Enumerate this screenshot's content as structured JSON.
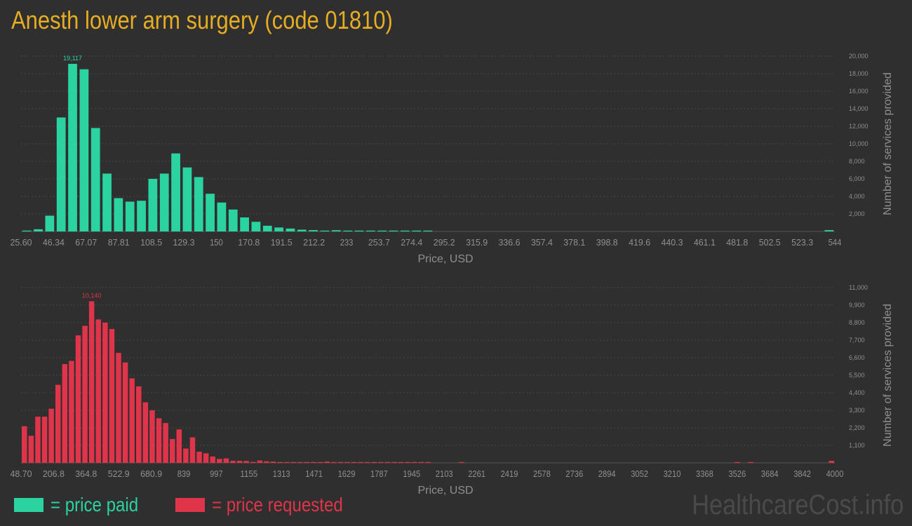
{
  "title": "Anesth lower arm surgery (code 01810)",
  "colors": {
    "paid": "#2ad3a0",
    "requested": "#e0344a",
    "title": "#e6ad24",
    "axis_text": "#8f8f8f"
  },
  "legend": {
    "paid_label": "= price paid",
    "requested_label": "= price requested"
  },
  "watermark": "HealthcareCost.info",
  "chart_data": [
    {
      "type": "bar",
      "series": [
        {
          "name": "price paid",
          "values": [
            100,
            250,
            1800,
            13000,
            19117,
            18500,
            11800,
            6600,
            3800,
            3400,
            3500,
            6000,
            6600,
            8900,
            7300,
            6200,
            4300,
            3300,
            2500,
            1600,
            1100,
            650,
            450,
            330,
            200,
            150,
            80,
            140,
            40,
            50,
            30,
            20,
            10,
            10,
            30,
            10,
            0,
            0,
            0,
            0,
            0,
            0,
            0,
            0,
            0,
            0,
            0,
            0,
            0,
            0,
            0,
            0,
            0,
            0,
            0,
            0,
            0,
            0,
            0,
            0,
            0,
            0,
            0,
            0,
            0,
            0,
            0,
            0,
            0,
            0,
            150
          ]
        }
      ],
      "peak_label": "19,117",
      "x_tick_labels": [
        "25.60",
        "46.34",
        "67.07",
        "87.81",
        "108.5",
        "129.3",
        "150",
        "170.8",
        "191.5",
        "212.2",
        "233",
        "253.7",
        "274.4",
        "295.2",
        "315.9",
        "336.6",
        "357.4",
        "378.1",
        "398.8",
        "419.6",
        "440.3",
        "461.1",
        "481.8",
        "502.5",
        "523.3",
        "544"
      ],
      "y_tick_labels": [
        "2,000",
        "4,000",
        "6,000",
        "8,000",
        "10,000",
        "12,000",
        "14,000",
        "16,000",
        "18,000",
        "20,000"
      ],
      "ylim": [
        0,
        20000
      ],
      "xlabel": "Price, USD",
      "ylabel": "Number of services provided",
      "grid": true
    },
    {
      "type": "bar",
      "series": [
        {
          "name": "price requested",
          "values": [
            2300,
            1700,
            2900,
            2900,
            3400,
            4900,
            6200,
            6400,
            8000,
            8600,
            10140,
            9000,
            8800,
            8400,
            6900,
            6300,
            5300,
            4800,
            3800,
            3300,
            2800,
            2500,
            1500,
            2100,
            900,
            1600,
            700,
            600,
            400,
            250,
            280,
            130,
            130,
            120,
            60,
            150,
            100,
            80,
            50,
            30,
            30,
            30,
            20,
            10,
            10,
            80,
            40,
            30,
            20,
            10,
            10,
            10,
            10,
            10,
            10,
            10,
            10,
            30,
            10,
            10,
            10,
            0,
            0,
            0,
            0,
            10,
            0,
            0,
            0,
            0,
            0,
            0,
            0,
            0,
            0,
            0,
            0,
            0,
            0,
            0,
            0,
            0,
            0,
            0,
            0,
            0,
            0,
            0,
            0,
            0,
            0,
            0,
            0,
            0,
            0,
            0,
            0,
            0,
            0,
            0,
            0,
            0,
            0,
            0,
            0,
            0,
            30,
            0,
            30,
            0,
            0,
            0,
            0,
            0,
            0,
            0,
            0,
            0,
            0,
            0,
            130
          ]
        }
      ],
      "peak_label": "10,140",
      "x_tick_labels": [
        "48.70",
        "206.8",
        "364.8",
        "522.9",
        "680.9",
        "839",
        "997",
        "1155",
        "1313",
        "1471",
        "1629",
        "1787",
        "1945",
        "2103",
        "2261",
        "2419",
        "2578",
        "2736",
        "2894",
        "3052",
        "3210",
        "3368",
        "3526",
        "3684",
        "3842",
        "4000"
      ],
      "y_tick_labels": [
        "1,100",
        "2,200",
        "3,300",
        "4,400",
        "5,500",
        "6,600",
        "7,700",
        "8,800",
        "9,900",
        "11,000"
      ],
      "ylim": [
        0,
        11000
      ],
      "xlabel": "Price, USD",
      "ylabel": "Number of services provided",
      "grid": true
    }
  ]
}
